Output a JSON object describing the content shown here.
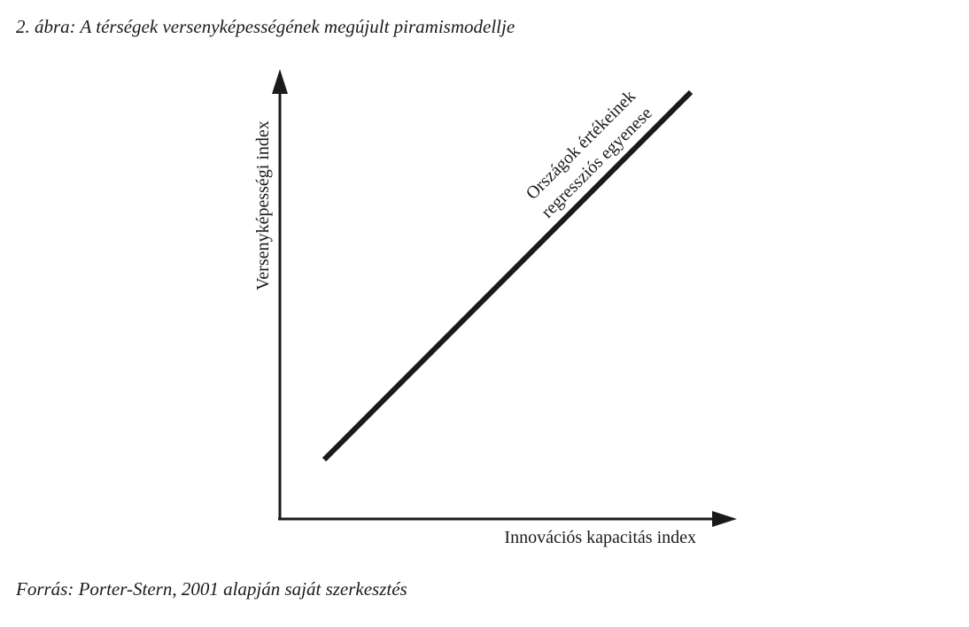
{
  "title": "2. ábra: A térségek versenyképességének megújult piramismodellje",
  "y_axis_label": "Versenyképességi index",
  "x_axis_label": "Innovációs kapacitás index",
  "line_label": [
    "Országok értékeinek",
    "regressziós egyenese"
  ],
  "source": "Forrás: Porter-Stern, 2001 alapján saját szerkesztés"
}
